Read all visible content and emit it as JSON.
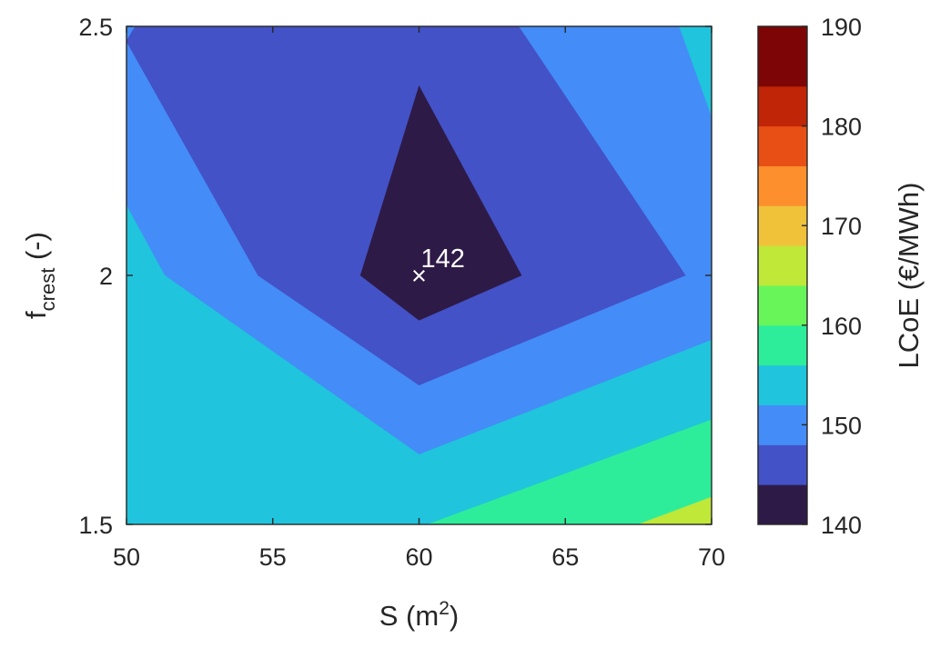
{
  "chart_data": {
    "type": "filled-contour",
    "xlabel": {
      "base": "S (m",
      "sup": "2",
      "tail": ")"
    },
    "ylabel": {
      "base": "f",
      "sub": "crest",
      "tail": " (-)"
    },
    "xlim": [
      50,
      70
    ],
    "ylim": [
      1.5,
      2.5
    ],
    "x_ticks": [
      50,
      55,
      60,
      65,
      70
    ],
    "y_ticks": [
      1.5,
      2,
      2.5
    ],
    "y_tick_labels": [
      "1.5",
      "2",
      "2.5"
    ],
    "colorbar": {
      "label": "LCoE (€/MWh)",
      "range": [
        140,
        190
      ],
      "ticks": [
        140,
        150,
        160,
        170,
        180,
        190
      ],
      "levels": [
        {
          "from": 140,
          "to": 144,
          "color": "#2e1a47"
        },
        {
          "from": 144,
          "to": 148,
          "color": "#4352c6"
        },
        {
          "from": 148,
          "to": 152,
          "color": "#448cf7"
        },
        {
          "from": 152,
          "to": 156,
          "color": "#20c4dc"
        },
        {
          "from": 156,
          "to": 160,
          "color": "#2ded9b"
        },
        {
          "from": 160,
          "to": 164,
          "color": "#68f55a"
        },
        {
          "from": 164,
          "to": 168,
          "color": "#bfe838"
        },
        {
          "from": 168,
          "to": 172,
          "color": "#f0c23a"
        },
        {
          "from": 172,
          "to": 176,
          "color": "#fd8f2d"
        },
        {
          "from": 176,
          "to": 180,
          "color": "#e84f15"
        },
        {
          "from": 180,
          "to": 184,
          "color": "#bf2506"
        },
        {
          "from": 184,
          "to": 190,
          "color": "#7e0505"
        }
      ]
    },
    "regions": [
      {
        "level": "148-152",
        "color": "#448cf7",
        "points": [
          [
            50,
            1.5
          ],
          [
            70,
            1.5
          ],
          [
            70,
            2.5
          ],
          [
            50,
            2.5
          ]
        ]
      },
      {
        "level": "152-156",
        "color": "#20c4dc",
        "points": [
          [
            50,
            1.5
          ],
          [
            70,
            1.5
          ],
          [
            70,
            1.87
          ],
          [
            60,
            1.64
          ],
          [
            51.3,
            2.0
          ],
          [
            50,
            2.14
          ]
        ]
      },
      {
        "level": "152-156",
        "color": "#20c4dc",
        "points": [
          [
            68.9,
            2.5
          ],
          [
            70,
            2.5
          ],
          [
            70,
            2.32
          ]
        ]
      },
      {
        "level": "144-148",
        "color": "#4352c6",
        "points": [
          [
            50,
            2.47
          ],
          [
            54.5,
            2.0
          ],
          [
            60,
            1.78
          ],
          [
            69.1,
            2.0
          ],
          [
            63.4,
            2.5
          ],
          [
            50.3,
            2.5
          ]
        ]
      },
      {
        "level": "156-160",
        "color": "#2ded9b",
        "points": [
          [
            60.3,
            1.5
          ],
          [
            70,
            1.5
          ],
          [
            70,
            1.71
          ]
        ]
      },
      {
        "level": "164-168",
        "color": "#bfe838",
        "points": [
          [
            67.5,
            1.5
          ],
          [
            70,
            1.5
          ],
          [
            70,
            1.555
          ]
        ]
      },
      {
        "level": "140-144",
        "color": "#2e1a47",
        "points": [
          [
            60,
            2.38
          ],
          [
            63.5,
            2.0
          ],
          [
            60,
            1.91
          ],
          [
            58.0,
            2.0
          ]
        ]
      }
    ],
    "annotations": [
      {
        "marker": "×",
        "x": 60,
        "y": 2,
        "text": "142"
      }
    ]
  }
}
